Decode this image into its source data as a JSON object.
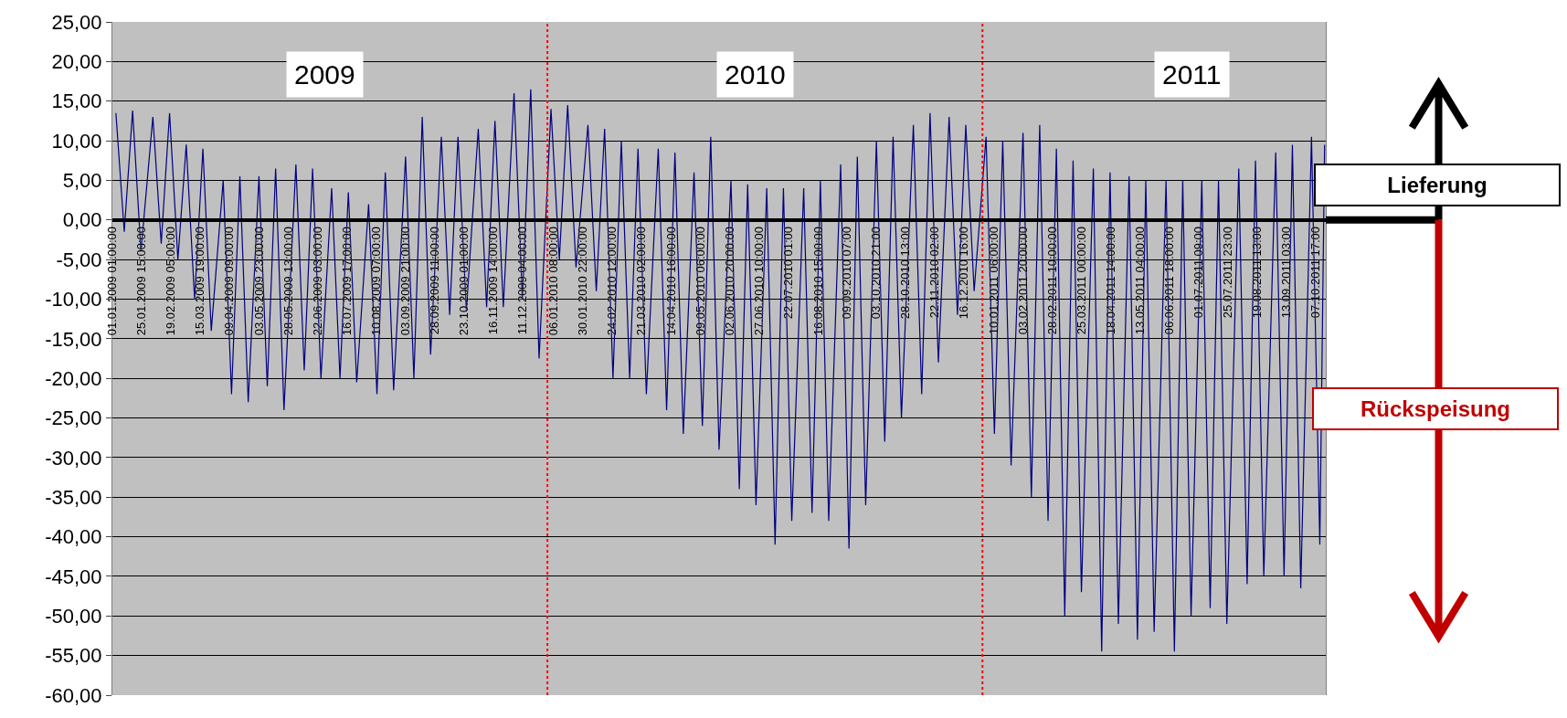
{
  "chart_data": {
    "type": "line",
    "x": [
      "2009-01-04",
      "2009-01-11",
      "2009-01-18",
      "2009-01-25",
      "2009-02-04",
      "2009-02-11",
      "2009-02-18",
      "2009-02-25",
      "2009-03-04",
      "2009-03-11",
      "2009-03-18",
      "2009-03-25",
      "2009-04-04",
      "2009-04-11",
      "2009-04-18",
      "2009-04-25",
      "2009-05-04",
      "2009-05-11",
      "2009-05-18",
      "2009-05-25",
      "2009-06-04",
      "2009-06-11",
      "2009-06-18",
      "2009-06-25",
      "2009-07-04",
      "2009-07-11",
      "2009-07-18",
      "2009-07-25",
      "2009-08-04",
      "2009-08-11",
      "2009-08-18",
      "2009-08-25",
      "2009-09-04",
      "2009-09-11",
      "2009-09-18",
      "2009-09-25",
      "2009-10-04",
      "2009-10-11",
      "2009-10-18",
      "2009-10-25",
      "2009-11-04",
      "2009-11-11",
      "2009-11-18",
      "2009-11-25",
      "2009-12-04",
      "2009-12-11",
      "2009-12-18",
      "2009-12-25",
      "2010-01-04",
      "2010-01-11",
      "2010-01-18",
      "2010-01-25",
      "2010-02-04",
      "2010-02-11",
      "2010-02-18",
      "2010-02-25",
      "2010-03-04",
      "2010-03-11",
      "2010-03-18",
      "2010-03-25",
      "2010-04-04",
      "2010-04-11",
      "2010-04-18",
      "2010-04-25",
      "2010-05-04",
      "2010-05-11",
      "2010-05-18",
      "2010-05-25",
      "2010-06-04",
      "2010-06-11",
      "2010-06-18",
      "2010-06-25",
      "2010-07-04",
      "2010-07-11",
      "2010-07-18",
      "2010-07-25",
      "2010-08-04",
      "2010-08-11",
      "2010-08-18",
      "2010-08-25",
      "2010-09-04",
      "2010-09-11",
      "2010-09-18",
      "2010-09-25",
      "2010-10-04",
      "2010-10-11",
      "2010-10-18",
      "2010-10-25",
      "2010-11-04",
      "2010-11-11",
      "2010-11-18",
      "2010-11-25",
      "2010-12-04",
      "2010-12-11",
      "2010-12-18",
      "2010-12-25",
      "2011-01-04",
      "2011-01-11",
      "2011-01-18",
      "2011-01-25",
      "2011-02-04",
      "2011-02-11",
      "2011-02-18",
      "2011-02-25",
      "2011-03-04",
      "2011-03-11",
      "2011-03-18",
      "2011-03-25",
      "2011-04-04",
      "2011-04-11",
      "2011-04-18",
      "2011-04-25",
      "2011-05-04",
      "2011-05-11",
      "2011-05-18",
      "2011-05-25",
      "2011-06-04",
      "2011-06-11",
      "2011-06-18",
      "2011-06-25",
      "2011-07-04",
      "2011-07-11",
      "2011-07-18",
      "2011-07-25",
      "2011-08-04",
      "2011-08-11",
      "2011-08-18",
      "2011-08-25",
      "2011-09-04",
      "2011-09-11",
      "2011-09-18",
      "2011-09-25",
      "2011-10-04",
      "2011-10-11",
      "2011-10-15"
    ],
    "series": [
      {
        "color": "#000080",
        "values": [
          13.5,
          -1.5,
          13.8,
          -4,
          13,
          -3,
          13.5,
          -5,
          9.5,
          -10,
          9,
          -14,
          5,
          -22,
          5.5,
          -23,
          5.5,
          -21,
          6.5,
          -24,
          7,
          -19,
          6.5,
          -20,
          4,
          -20,
          3.5,
          -20.5,
          2,
          -22,
          6,
          -21.5,
          8,
          -20,
          13,
          -17,
          10.5,
          -12,
          10.5,
          -11.5,
          11.5,
          -11,
          12.5,
          -11,
          16,
          -10,
          16.5,
          -17.5,
          14,
          -5,
          14.5,
          -6,
          12,
          -9,
          11.5,
          -20,
          10,
          -20,
          9,
          -22,
          9,
          -24,
          8.5,
          -27,
          6,
          -26,
          10.5,
          -29,
          5,
          -34,
          4.5,
          -36,
          4,
          -41,
          4,
          -38,
          4,
          -37,
          5,
          -38,
          7,
          -41.5,
          8,
          -36,
          10,
          -28,
          10.5,
          -25,
          12,
          -22,
          13.5,
          -18,
          13,
          -12,
          12,
          -9,
          10.5,
          -27,
          10,
          -31,
          11,
          -35,
          12,
          -38,
          9,
          -50,
          7.5,
          -47,
          6.5,
          -54.5,
          6,
          -51,
          5.5,
          -53,
          5,
          -52,
          5,
          -54.5,
          5,
          -50,
          5,
          -49,
          5,
          -51,
          6.5,
          -46,
          7.5,
          -45,
          8.5,
          -45,
          9.5,
          -46.5,
          10.5,
          -41,
          9.5
        ]
      }
    ],
    "xlim": [
      "2009-01-01T01:00",
      "2011-10-16T00:00"
    ],
    "xticks": [
      {
        "value": "2009-01-01T01:00",
        "label": "01.01.2009 01:00:00"
      },
      {
        "value": "2009-01-25T15:00",
        "label": "25.01.2009 15:00:00"
      },
      {
        "value": "2009-02-19T05:00",
        "label": "19.02.2009 05:00:00"
      },
      {
        "value": "2009-03-15T19:00",
        "label": "15.03.2009 19:00:00"
      },
      {
        "value": "2009-04-09T09:00",
        "label": "09.04.2009 09:00:00"
      },
      {
        "value": "2009-05-03T23:00",
        "label": "03.05.2009 23:00:00"
      },
      {
        "value": "2009-05-28T13:00",
        "label": "28.05.2009 13:00:00"
      },
      {
        "value": "2009-06-22T03:00",
        "label": "22.06.2009 03:00:00"
      },
      {
        "value": "2009-07-16T17:00",
        "label": "16.07.2009 17:00:00"
      },
      {
        "value": "2009-08-10T07:00",
        "label": "10.08.2009 07:00:00"
      },
      {
        "value": "2009-09-03T21:00",
        "label": "03.09.2009 21:00:00"
      },
      {
        "value": "2009-09-28T11:00",
        "label": "28.09.2009 11:00:00"
      },
      {
        "value": "2009-10-23T01:00",
        "label": "23.10.2009 01:00:00"
      },
      {
        "value": "2009-11-16T14:00",
        "label": "16.11.2009 14:00:00"
      },
      {
        "value": "2009-12-11T04:00",
        "label": "11.12.2009 04:00:00"
      },
      {
        "value": "2010-01-06T08:00",
        "label": "06.01.2010 08:00:00"
      },
      {
        "value": "2010-01-30T22:00",
        "label": "30.01.2010 22:00:00"
      },
      {
        "value": "2010-02-24T12:00",
        "label": "24.02.2010 12:00:00"
      },
      {
        "value": "2010-03-21T02:00",
        "label": "21.03.2010 02:00:00"
      },
      {
        "value": "2010-04-14T16:00",
        "label": "14.04.2010 16:00:00"
      },
      {
        "value": "2010-05-09T06:00",
        "label": "09.05.2010 06:00:00"
      },
      {
        "value": "2010-06-02T20:00",
        "label": "02.06.2010 20:00:00"
      },
      {
        "value": "2010-06-27T10:00",
        "label": "27.06.2010 10:00:00"
      },
      {
        "value": "2010-07-22T01:00",
        "label": "22.07.2010 01:00"
      },
      {
        "value": "2010-08-16T15:00",
        "label": "16.08.2010 15:00:00"
      },
      {
        "value": "2010-09-09T07:00",
        "label": "09.09.2010 07:00"
      },
      {
        "value": "2010-10-03T21:00",
        "label": "03.10.2010 21:00"
      },
      {
        "value": "2010-10-28T13:00",
        "label": "28.10.2010 13:00"
      },
      {
        "value": "2010-11-22T02:00",
        "label": "22.11.2010 02:00"
      },
      {
        "value": "2010-12-16T16:00",
        "label": "16.12.2010 16:00"
      },
      {
        "value": "2011-01-10T06:00",
        "label": "10.01.2011 06:00:00"
      },
      {
        "value": "2011-02-03T20:00",
        "label": "03.02.2011 20:00:00"
      },
      {
        "value": "2011-02-28T10:00",
        "label": "28.02.2011 10:00:00"
      },
      {
        "value": "2011-03-25T00:00",
        "label": "25.03.2011 00:00:00"
      },
      {
        "value": "2011-04-18T14:00",
        "label": "18.04.2011 14:00:00"
      },
      {
        "value": "2011-05-13T04:00",
        "label": "13.05.2011 04:00:00"
      },
      {
        "value": "2011-06-06T18:00",
        "label": "06.06.2011 18:00:00"
      },
      {
        "value": "2011-07-01T09:00",
        "label": "01.07.2011 09:00"
      },
      {
        "value": "2011-07-25T23:00",
        "label": "25.07.2011 23:00"
      },
      {
        "value": "2011-08-19T13:00",
        "label": "19.08.2011 13:00"
      },
      {
        "value": "2011-09-13T03:00",
        "label": "13.09.2011 03:00"
      },
      {
        "value": "2011-10-07T17:00",
        "label": "07.10.2011 17:00"
      }
    ],
    "ylim": [
      -60,
      25
    ],
    "yticks": [
      {
        "value": 25,
        "label": "25,00"
      },
      {
        "value": 20,
        "label": "20,00"
      },
      {
        "value": 15,
        "label": "15,00"
      },
      {
        "value": 10,
        "label": "10,00"
      },
      {
        "value": 5,
        "label": "5,00"
      },
      {
        "value": 0,
        "label": "0,00"
      },
      {
        "value": -5,
        "label": "-5,00"
      },
      {
        "value": -10,
        "label": "-10,00"
      },
      {
        "value": -15,
        "label": "-15,00"
      },
      {
        "value": -20,
        "label": "-20,00"
      },
      {
        "value": -25,
        "label": "-25,00"
      },
      {
        "value": -30,
        "label": "-30,00"
      },
      {
        "value": -35,
        "label": "-35,00"
      },
      {
        "value": -40,
        "label": "-40,00"
      },
      {
        "value": -45,
        "label": "-45,00"
      },
      {
        "value": -50,
        "label": "-50,00"
      },
      {
        "value": -55,
        "label": "-55,00"
      },
      {
        "value": -60,
        "label": "-60,00"
      }
    ],
    "grid": "y",
    "ref_lines": [
      {
        "axis": "x",
        "value": "2010-01-01",
        "color": "#ff0000",
        "line_style": "dotted"
      },
      {
        "axis": "x",
        "value": "2011-01-01",
        "color": "#ff0000",
        "line_style": "dotted"
      }
    ],
    "annotations": [
      "2009",
      "2010",
      "2011",
      "Lieferung",
      "Rückspeisung"
    ]
  }
}
